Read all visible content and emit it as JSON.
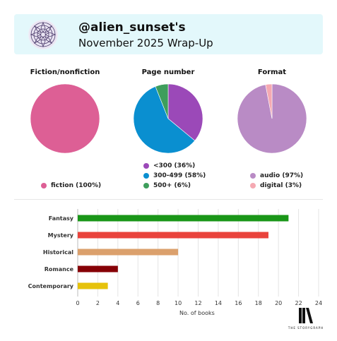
{
  "header": {
    "handle": "@alien_sunset's",
    "subtitle": "November 2025 Wrap-Up"
  },
  "pies": [
    {
      "title": "Fiction/nonfiction",
      "slices": [
        {
          "label": "fiction (100%)",
          "value": 100,
          "color": "#dd5f95"
        }
      ]
    },
    {
      "title": "Page number",
      "slices": [
        {
          "label": "<300 (36%)",
          "value": 36,
          "color": "#9b49b8"
        },
        {
          "label": "300-499 (58%)",
          "value": 58,
          "color": "#0a8fd0"
        },
        {
          "label": "500+ (6%)",
          "value": 6,
          "color": "#3e9e5c"
        }
      ]
    },
    {
      "title": "Format",
      "slices": [
        {
          "label": "audio (97%)",
          "value": 97,
          "color": "#b98bc5"
        },
        {
          "label": "digital (3%)",
          "value": 3,
          "color": "#f5a9b2"
        }
      ]
    }
  ],
  "chart_data": {
    "type": "bar",
    "orientation": "horizontal",
    "categories": [
      "Fantasy",
      "Mystery",
      "Historical",
      "Romance",
      "Contemporary"
    ],
    "values": [
      21,
      19,
      10,
      4,
      3
    ],
    "colors": [
      "#1a9618",
      "#e9433c",
      "#dba06c",
      "#860006",
      "#e6c20b"
    ],
    "xlabel": "No. of books",
    "xlim": [
      0,
      24
    ],
    "xticks": [
      0,
      2,
      4,
      6,
      8,
      10,
      12,
      14,
      16,
      18,
      20,
      22,
      24
    ],
    "grid": true
  },
  "brand": {
    "text": "THE STORYGRAPH",
    "icon": "storygraph-logo-icon"
  }
}
